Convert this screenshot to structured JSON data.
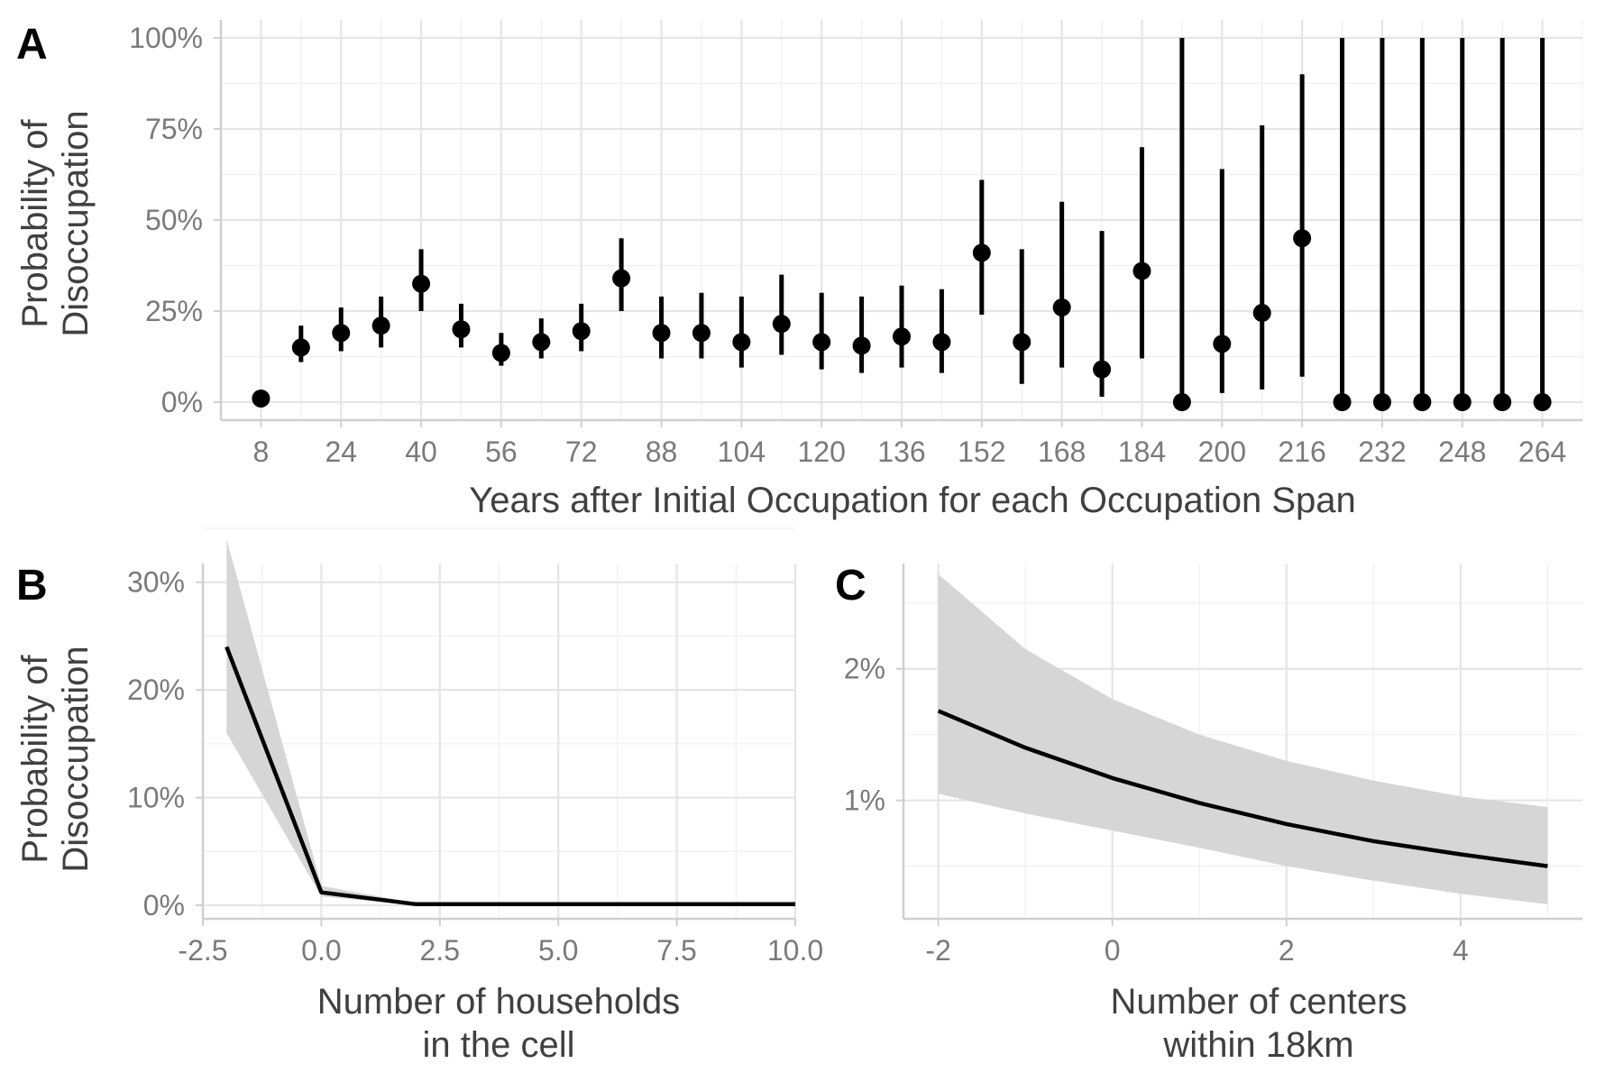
{
  "panels": {
    "a": {
      "tag": "A",
      "ylabel_line1": "Probability of",
      "ylabel_line2": "Disoccupation",
      "xlabel": "Years after Initial Occupation for each Occupation Span"
    },
    "b": {
      "tag": "B",
      "ylabel_line1": "Probability of",
      "ylabel_line2": "Disoccupation",
      "xlabel_line1": "Number of households",
      "xlabel_line2": "in the cell"
    },
    "c": {
      "tag": "C",
      "xlabel_line1": "Number of centers",
      "xlabel_line2": "within 18km"
    }
  },
  "chart_data": [
    {
      "panel": "A",
      "type": "scatter",
      "xlabel": "Years after Initial Occupation for each Occupation Span",
      "ylabel": "Probability of Disoccupation",
      "xlim": [
        0,
        272
      ],
      "ylim": [
        0,
        100
      ],
      "x_ticks": [
        8,
        24,
        40,
        56,
        72,
        88,
        104,
        120,
        136,
        152,
        168,
        184,
        200,
        216,
        232,
        248,
        264
      ],
      "y_ticks": [
        0,
        25,
        50,
        75,
        100
      ],
      "y_tick_labels": [
        "0%",
        "25%",
        "50%",
        "75%",
        "100%"
      ],
      "grid": true,
      "points": [
        {
          "x": 8,
          "y": 1.0,
          "lo": 1.0,
          "hi": 1.0
        },
        {
          "x": 16,
          "y": 15,
          "lo": 11,
          "hi": 21
        },
        {
          "x": 24,
          "y": 19,
          "lo": 14,
          "hi": 26
        },
        {
          "x": 32,
          "y": 21,
          "lo": 15,
          "hi": 29
        },
        {
          "x": 40,
          "y": 32.5,
          "lo": 25,
          "hi": 42
        },
        {
          "x": 48,
          "y": 20,
          "lo": 15,
          "hi": 27
        },
        {
          "x": 56,
          "y": 13.5,
          "lo": 10,
          "hi": 19
        },
        {
          "x": 64,
          "y": 16.5,
          "lo": 12,
          "hi": 23
        },
        {
          "x": 72,
          "y": 19.5,
          "lo": 14,
          "hi": 27
        },
        {
          "x": 80,
          "y": 34,
          "lo": 25,
          "hi": 45
        },
        {
          "x": 88,
          "y": 19,
          "lo": 12,
          "hi": 29
        },
        {
          "x": 96,
          "y": 19,
          "lo": 12,
          "hi": 30
        },
        {
          "x": 104,
          "y": 16.5,
          "lo": 9.5,
          "hi": 29
        },
        {
          "x": 112,
          "y": 21.5,
          "lo": 13,
          "hi": 35
        },
        {
          "x": 120,
          "y": 16.5,
          "lo": 9,
          "hi": 30
        },
        {
          "x": 128,
          "y": 15.5,
          "lo": 8,
          "hi": 29
        },
        {
          "x": 136,
          "y": 18,
          "lo": 9.5,
          "hi": 32
        },
        {
          "x": 144,
          "y": 16.5,
          "lo": 8,
          "hi": 31
        },
        {
          "x": 152,
          "y": 41,
          "lo": 24,
          "hi": 61
        },
        {
          "x": 160,
          "y": 16.5,
          "lo": 5,
          "hi": 42
        },
        {
          "x": 168,
          "y": 26,
          "lo": 9.5,
          "hi": 55
        },
        {
          "x": 176,
          "y": 9,
          "lo": 1.5,
          "hi": 47
        },
        {
          "x": 184,
          "y": 36,
          "lo": 12,
          "hi": 70
        },
        {
          "x": 192,
          "y": 0,
          "lo": 0,
          "hi": 100
        },
        {
          "x": 200,
          "y": 16,
          "lo": 2.5,
          "hi": 64
        },
        {
          "x": 208,
          "y": 24.5,
          "lo": 3.5,
          "hi": 76
        },
        {
          "x": 216,
          "y": 45,
          "lo": 7,
          "hi": 90
        },
        {
          "x": 224,
          "y": 0,
          "lo": 0,
          "hi": 100
        },
        {
          "x": 232,
          "y": 0,
          "lo": 0,
          "hi": 100
        },
        {
          "x": 240,
          "y": 0,
          "lo": 0,
          "hi": 100
        },
        {
          "x": 248,
          "y": 0,
          "lo": 0,
          "hi": 100
        },
        {
          "x": 256,
          "y": 0,
          "lo": 0,
          "hi": 100
        },
        {
          "x": 264,
          "y": 0,
          "lo": 0,
          "hi": 100
        }
      ]
    },
    {
      "panel": "B",
      "type": "line",
      "xlabel": "Number of households in the cell",
      "ylabel": "Probability of Disoccupation",
      "xlim": [
        -2.5,
        10.0
      ],
      "ylim": [
        0,
        35
      ],
      "x_ticks": [
        -2.5,
        0.0,
        2.5,
        5.0,
        7.5,
        10.0
      ],
      "x_tick_labels": [
        "-2.5",
        "0.0",
        "2.5",
        "5.0",
        "7.5",
        "10.0"
      ],
      "y_ticks": [
        0,
        10,
        20,
        30
      ],
      "y_tick_labels": [
        "0%",
        "10%",
        "20%",
        "30%"
      ],
      "grid": true,
      "x": [
        -2,
        0,
        2,
        10
      ],
      "y": [
        24,
        1.2,
        0.1,
        0.1
      ],
      "lower": [
        16,
        0.8,
        0.05,
        0.05
      ],
      "upper": [
        34,
        1.8,
        0.2,
        0.2
      ]
    },
    {
      "panel": "C",
      "type": "line",
      "xlabel": "Number of centers within 18km",
      "xlim": [
        -2.4,
        5.4
      ],
      "ylim": [
        0.1,
        2.8
      ],
      "x_ticks": [
        -2,
        0,
        2,
        4
      ],
      "x_tick_labels": [
        "-2",
        "0",
        "2",
        "4"
      ],
      "y_ticks": [
        1,
        2
      ],
      "y_tick_labels": [
        "1%",
        "2%"
      ],
      "grid": true,
      "x": [
        -2,
        -1,
        0,
        1,
        2,
        3,
        4,
        5
      ],
      "y": [
        1.68,
        1.4,
        1.17,
        0.98,
        0.82,
        0.69,
        0.59,
        0.5
      ],
      "lower": [
        1.05,
        0.9,
        0.77,
        0.64,
        0.5,
        0.39,
        0.29,
        0.21
      ],
      "upper": [
        2.72,
        2.15,
        1.77,
        1.5,
        1.3,
        1.15,
        1.03,
        0.95
      ]
    }
  ]
}
